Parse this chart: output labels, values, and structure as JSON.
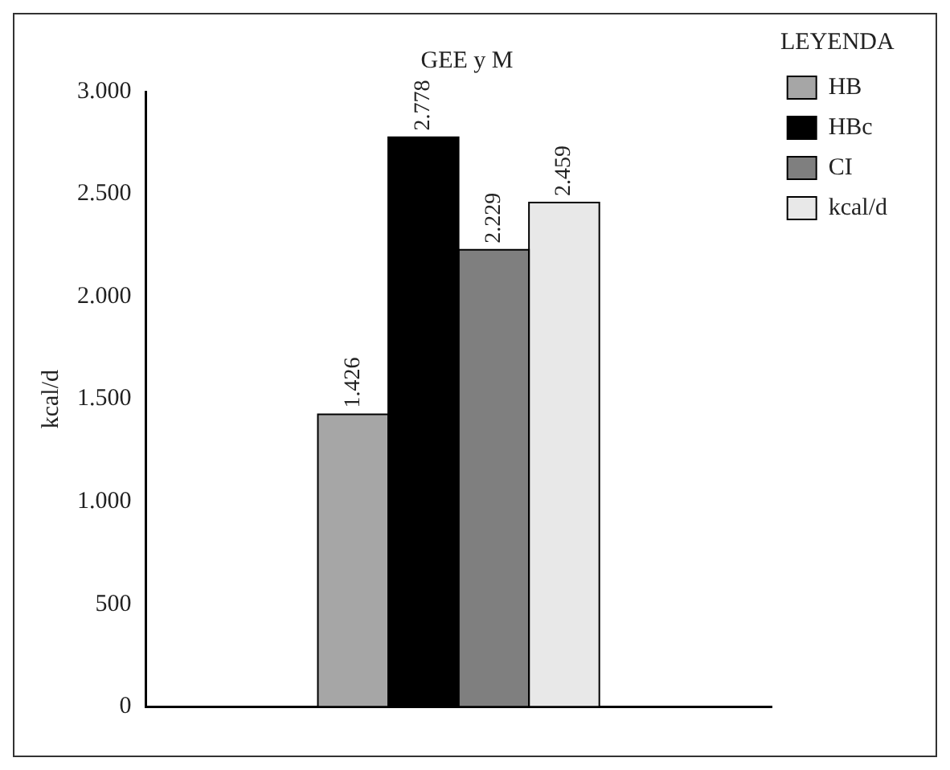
{
  "chart_data": {
    "type": "bar",
    "title": "GEE y M",
    "ylabel": "kcal/d",
    "legend_title": "LEYENDA",
    "categories": [
      null
    ],
    "series": [
      {
        "name": "HB",
        "color": "#a6a6a6",
        "values": [
          1426
        ],
        "value_labels": [
          "1.426"
        ]
      },
      {
        "name": "HBc",
        "color": "#000000",
        "values": [
          2778
        ],
        "value_labels": [
          "2.778"
        ]
      },
      {
        "name": "CI",
        "color": "#7f7f7f",
        "values": [
          2229
        ],
        "value_labels": [
          "2.229"
        ]
      },
      {
        "name": "kcal/d",
        "color": "#e8e8e8",
        "values": [
          2459
        ],
        "value_labels": [
          "2.459"
        ]
      }
    ],
    "ylim": [
      0,
      3000
    ],
    "yticks": [
      0,
      500,
      {
        "value": 1000,
        "label": "1.000"
      },
      {
        "value": 1500,
        "label": "1.500"
      },
      {
        "value": 2000,
        "label": "2.000"
      },
      {
        "value": 2500,
        "label": "2.500"
      },
      {
        "value": 3000,
        "label": "3.000"
      }
    ],
    "grid": false,
    "legend": "top right"
  }
}
